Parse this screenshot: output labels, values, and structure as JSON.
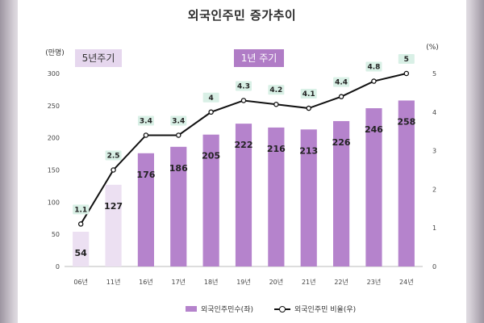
{
  "chart_data": {
    "type": "bar+line",
    "title": "외국인주민 증가추이",
    "categories": [
      "06년",
      "11년",
      "16년",
      "17년",
      "18년",
      "19년",
      "20년",
      "21년",
      "22년",
      "23년",
      "24년"
    ],
    "y_left": {
      "unit": "(만명)",
      "ylim": [
        0,
        300
      ],
      "ticks": [
        0,
        50,
        100,
        150,
        200,
        250,
        300
      ]
    },
    "y_right": {
      "unit": "(%)",
      "ylim": [
        0,
        5
      ],
      "ticks": [
        0,
        1,
        2,
        3,
        4,
        5
      ]
    },
    "series": [
      {
        "name": "외국인주민수(좌)",
        "type": "bar",
        "axis": "left",
        "values": [
          54,
          127,
          176,
          186,
          205,
          222,
          216,
          213,
          226,
          246,
          258
        ],
        "colors": [
          "#ece0f2",
          "#ece0f2",
          "#b583cc",
          "#b583cc",
          "#b583cc",
          "#b583cc",
          "#b583cc",
          "#b583cc",
          "#b583cc",
          "#b583cc",
          "#b583cc"
        ]
      },
      {
        "name": "외국인주민 비율(우)",
        "type": "line",
        "axis": "right",
        "values": [
          1.1,
          2.5,
          3.4,
          3.4,
          4,
          4.3,
          4.2,
          4.1,
          4.4,
          4.8,
          5
        ]
      }
    ],
    "periods": [
      {
        "label": "5년주기",
        "color": "#e6d7ee"
      },
      {
        "label": "1년 주기",
        "color": "#b07cc6"
      }
    ],
    "line_label_bg": "#d9f0e6",
    "grid": false,
    "legend_position": "bottom"
  }
}
